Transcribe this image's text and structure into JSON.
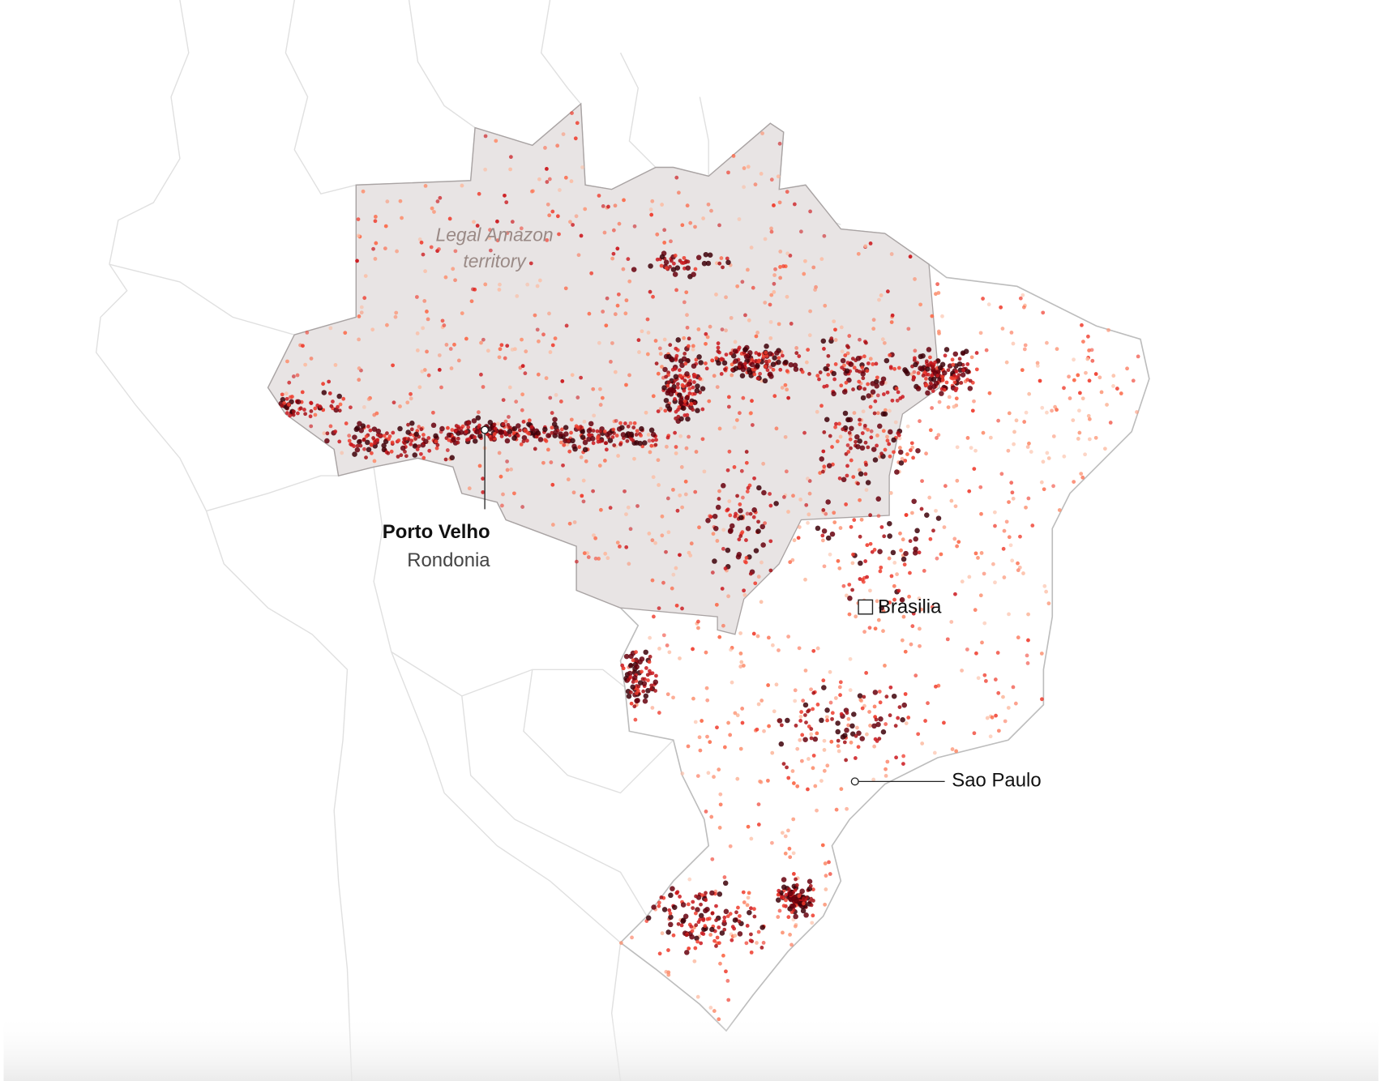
{
  "map": {
    "amazon_label": {
      "line1": "Legal Amazon",
      "line2": "territory"
    },
    "cities": [
      {
        "name": "Porto Velho",
        "region": "Rondonia"
      },
      {
        "name": "Brasilia"
      },
      {
        "name": "Sao Paulo"
      }
    ]
  }
}
